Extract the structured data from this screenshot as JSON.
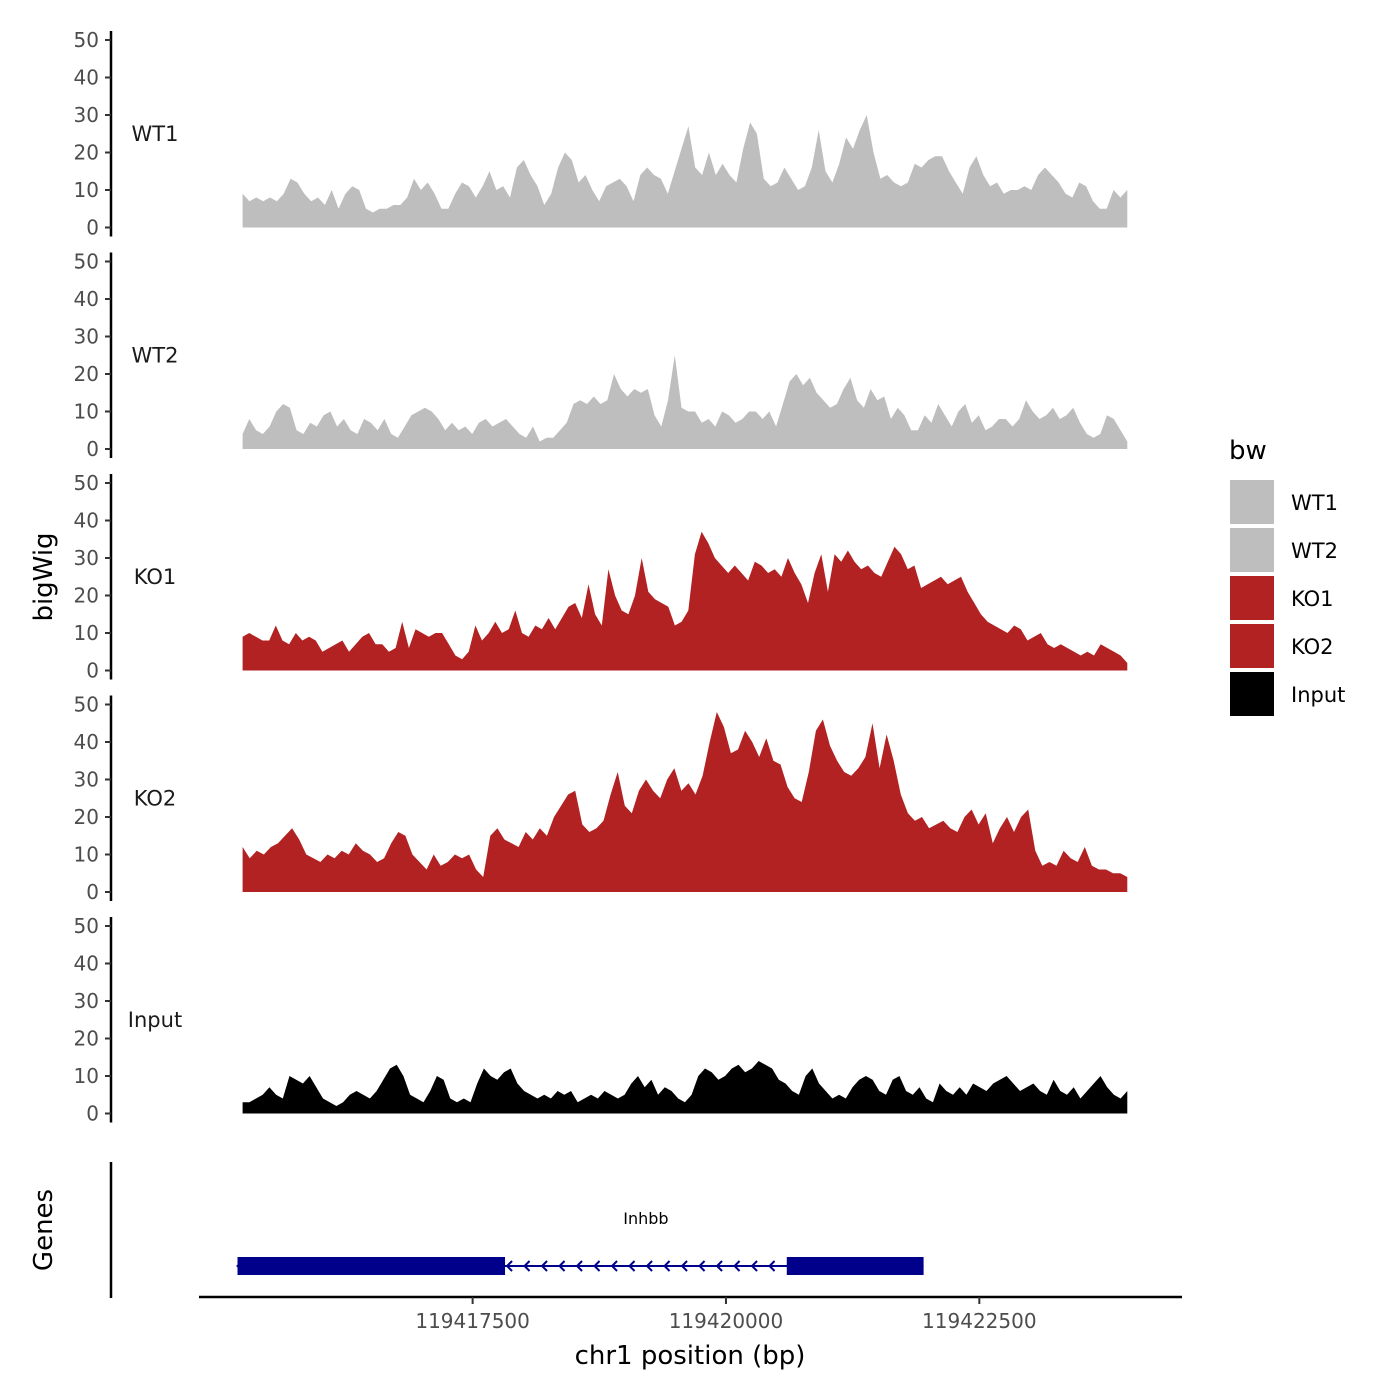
{
  "chart_data": {
    "type": "area",
    "title": "",
    "xlabel": "chr1 position (bp)",
    "ylabel": "bigWig",
    "genes_label": "Genes",
    "xlim": [
      119414800,
      119424500
    ],
    "x_ticks": [
      119417500,
      119420000,
      119422500
    ],
    "x_tick_labels": [
      "119417500",
      "119420000",
      "119422500"
    ],
    "ylim": [
      0,
      50
    ],
    "y_ticks": [
      0,
      10,
      20,
      30,
      40,
      50
    ],
    "y_tick_labels": [
      "0",
      "10",
      "20",
      "30",
      "40",
      "50"
    ],
    "x_start": 119415230,
    "x_end": 119423960,
    "legend": {
      "title": "bw",
      "position": "right",
      "entries": [
        {
          "label": "WT1",
          "color": "#BEBEBE"
        },
        {
          "label": "WT2",
          "color": "#BEBEBE"
        },
        {
          "label": "KO1",
          "color": "#B22222"
        },
        {
          "label": "KO2",
          "color": "#B22222"
        },
        {
          "label": "Input",
          "color": "#000000"
        }
      ]
    },
    "series": [
      {
        "name": "WT1",
        "color": "#BEBEBE",
        "values": [
          9,
          7,
          8,
          7,
          8,
          7,
          9,
          13,
          12,
          9,
          7,
          8,
          6,
          10,
          5,
          9,
          11,
          10,
          5,
          4,
          5,
          5,
          6,
          6,
          8,
          13,
          10,
          12,
          9,
          5,
          5,
          9,
          12,
          11,
          8,
          11,
          15,
          10,
          11,
          8,
          16,
          18,
          14,
          11,
          6,
          9,
          16,
          20,
          18,
          12,
          14,
          10,
          7,
          11,
          12,
          13,
          11,
          7,
          14,
          16,
          14,
          13,
          9,
          15,
          21,
          27,
          16,
          14,
          20,
          14,
          17,
          14,
          12,
          21,
          28,
          25,
          13,
          11,
          12,
          16,
          13,
          10,
          11,
          16,
          26,
          15,
          12,
          17,
          24,
          21,
          26,
          30,
          20,
          13,
          14,
          12,
          11,
          12,
          17,
          16,
          18,
          19,
          19,
          15,
          12,
          9,
          16,
          19,
          14,
          11,
          12,
          9,
          10,
          10,
          11,
          10,
          14,
          16,
          14,
          12,
          9,
          8,
          12,
          11,
          7,
          5,
          5,
          10,
          8,
          10
        ]
      },
      {
        "name": "WT2",
        "color": "#BEBEBE",
        "values": [
          4,
          8,
          5,
          4,
          6,
          10,
          12,
          11,
          5,
          4,
          7,
          6,
          9,
          10,
          6,
          8,
          5,
          4,
          8,
          7,
          5,
          8,
          4,
          3,
          6,
          9,
          10,
          11,
          10,
          8,
          5,
          7,
          5,
          6,
          4,
          7,
          8,
          6,
          7,
          8,
          6,
          4,
          3,
          6,
          2,
          3,
          3,
          5,
          7,
          12,
          13,
          12,
          14,
          12,
          13,
          20,
          16,
          14,
          16,
          15,
          16,
          9,
          6,
          13,
          25,
          11,
          10,
          10,
          7,
          8,
          6,
          10,
          9,
          7,
          8,
          10,
          10,
          8,
          10,
          6,
          12,
          18,
          20,
          17,
          19,
          15,
          13,
          11,
          12,
          16,
          19,
          13,
          11,
          16,
          13,
          14,
          8,
          11,
          9,
          5,
          5,
          9,
          7,
          12,
          9,
          6,
          10,
          12,
          7,
          9,
          5,
          6,
          8,
          8,
          6,
          8,
          13,
          10,
          8,
          9,
          11,
          8,
          9,
          11,
          7,
          4,
          3,
          4,
          9,
          8,
          5,
          2
        ]
      },
      {
        "name": "KO1",
        "color": "#B22222",
        "values": [
          9,
          10,
          9,
          8,
          8,
          12,
          8,
          7,
          10,
          8,
          9,
          8,
          5,
          6,
          7,
          8,
          5,
          7,
          9,
          10,
          7,
          7,
          5,
          6,
          13,
          6,
          11,
          10,
          9,
          10,
          10,
          7,
          4,
          3,
          5,
          12,
          8,
          10,
          13,
          10,
          11,
          16,
          10,
          9,
          12,
          11,
          14,
          11,
          14,
          17,
          18,
          14,
          23,
          15,
          12,
          27,
          20,
          16,
          15,
          20,
          30,
          21,
          19,
          18,
          17,
          12,
          13,
          16,
          31,
          37,
          34,
          30,
          28,
          26,
          28,
          26,
          24,
          29,
          28,
          26,
          27,
          25,
          30,
          26,
          23,
          18,
          26,
          31,
          21,
          31,
          29,
          32,
          29,
          27,
          28,
          26,
          25,
          29,
          33,
          31,
          27,
          28,
          22,
          23,
          24,
          25,
          23,
          24,
          25,
          21,
          18,
          15,
          13,
          12,
          11,
          10,
          12,
          11,
          8,
          9,
          10,
          7,
          6,
          7,
          6,
          5,
          4,
          5,
          4,
          7,
          6,
          5,
          4,
          2
        ]
      },
      {
        "name": "KO2",
        "color": "#B22222",
        "values": [
          12,
          9,
          11,
          10,
          12,
          13,
          15,
          17,
          14,
          10,
          9,
          8,
          10,
          9,
          11,
          10,
          13,
          11,
          10,
          8,
          9,
          13,
          16,
          15,
          10,
          8,
          6,
          10,
          7,
          8,
          10,
          9,
          10,
          6,
          4,
          15,
          17,
          14,
          13,
          12,
          16,
          14,
          17,
          15,
          20,
          23,
          26,
          27,
          18,
          16,
          17,
          19,
          26,
          32,
          23,
          21,
          27,
          30,
          27,
          25,
          30,
          33,
          27,
          29,
          26,
          31,
          40,
          48,
          44,
          37,
          38,
          43,
          40,
          36,
          41,
          35,
          34,
          28,
          25,
          24,
          32,
          43,
          46,
          39,
          35,
          32,
          31,
          33,
          36,
          45,
          33,
          42,
          35,
          26,
          21,
          19,
          20,
          17,
          18,
          19,
          17,
          16,
          20,
          22,
          18,
          21,
          13,
          17,
          20,
          16,
          20,
          22,
          11,
          7,
          8,
          7,
          11,
          9,
          8,
          12,
          7,
          6,
          6,
          5,
          5,
          4
        ]
      },
      {
        "name": "Input",
        "color": "#000000",
        "values": [
          3,
          3,
          4,
          5,
          7,
          5,
          4,
          10,
          9,
          8,
          10,
          7,
          4,
          3,
          2,
          3,
          5,
          6,
          5,
          4,
          6,
          9,
          12,
          13,
          10,
          5,
          4,
          3,
          6,
          10,
          9,
          4,
          3,
          4,
          3,
          8,
          12,
          10,
          9,
          11,
          12,
          8,
          6,
          5,
          4,
          5,
          4,
          6,
          5,
          6,
          3,
          4,
          5,
          4,
          6,
          5,
          4,
          5,
          8,
          10,
          7,
          9,
          5,
          7,
          6,
          4,
          3,
          5,
          10,
          12,
          11,
          9,
          10,
          12,
          13,
          11,
          12,
          14,
          13,
          12,
          9,
          8,
          6,
          5,
          10,
          12,
          8,
          6,
          4,
          5,
          4,
          7,
          9,
          10,
          9,
          6,
          5,
          9,
          10,
          6,
          5,
          7,
          4,
          3,
          8,
          6,
          5,
          7,
          5,
          8,
          7,
          6,
          8,
          9,
          10,
          8,
          6,
          7,
          8,
          6,
          5,
          9,
          6,
          5,
          7,
          4,
          6,
          8,
          10,
          7,
          5,
          4,
          6
        ]
      }
    ],
    "gene": {
      "name": "Inhbb",
      "color": "#00008B",
      "strand": "-",
      "start": 119415180,
      "end": 119421950,
      "exons": [
        {
          "start": 119415180,
          "end": 119417820
        },
        {
          "start": 119420600,
          "end": 119421950
        }
      ]
    }
  }
}
